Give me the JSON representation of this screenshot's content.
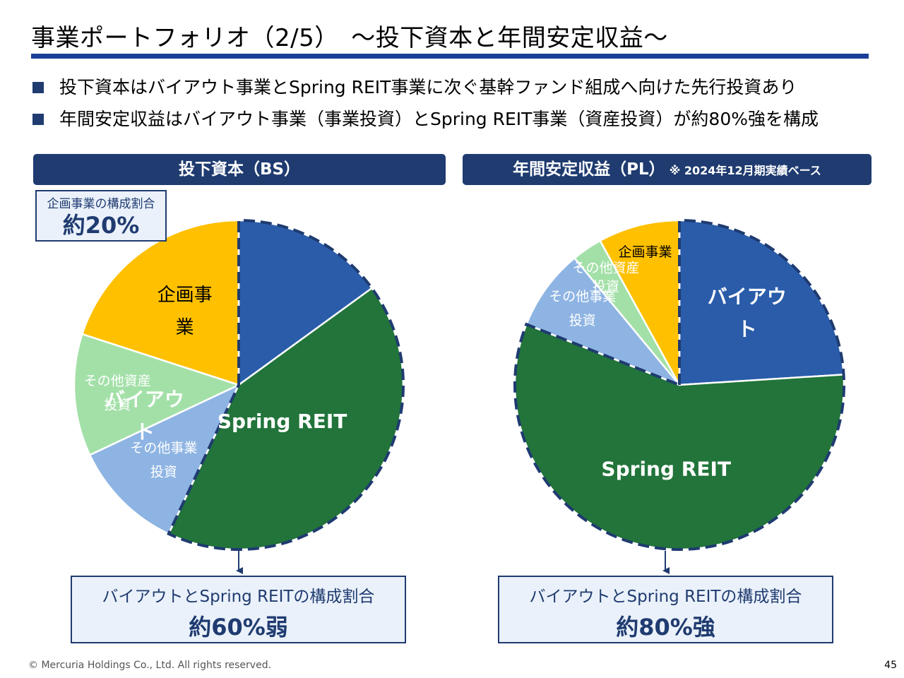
{
  "page": {
    "title": "事業ポートフォリオ（2/5）　～投下資本と年間安定収益～",
    "bullets": [
      "投下資本はバイアウト事業とSpring REIT事業に次ぐ基幹ファンド組成へ向けた先行投資あり",
      "年間安定収益はバイアウト事業（事業投資）とSpring REIT事業（資産投資）が約80%強を構成"
    ],
    "footer": "© Mercuria Holdings Co., Ltd. All rights reserved.",
    "page_number": "45"
  },
  "left_panel": {
    "header": "投下資本（BS）",
    "callout_label": "企画事業の構成割合",
    "callout_value": "約20%",
    "summary_label": "バイアウトとSpring REITの構成割合",
    "summary_value": "約60%弱"
  },
  "right_panel": {
    "header": "年間安定収益（PL）",
    "header_note": "※ 2024年12月期実績ベース",
    "summary_label": "バイアウトとSpring REITの構成割合",
    "summary_value": "約80%強"
  },
  "colors": {
    "buyout": "#2a5caa",
    "spring_reit": "#22743a",
    "other_business": "#8eb4e3",
    "other_asset": "#a3e0a8",
    "planning": "#ffc000",
    "navy": "#1f3b70"
  },
  "chart_data": [
    {
      "type": "pie",
      "title": "投下資本（BS）",
      "slices": [
        {
          "label": "バイアウト",
          "label_lines": [
            "バイアウ",
            "ト"
          ],
          "value": 15,
          "color": "#2a5caa",
          "text_color": "#ffffff",
          "bold": true
        },
        {
          "label": "Spring REIT",
          "label_lines": [
            "Spring REIT"
          ],
          "value": 42,
          "color": "#22743a",
          "text_color": "#ffffff",
          "bold": true
        },
        {
          "label": "その他事業投資",
          "label_lines": [
            "その他事業",
            "投資"
          ],
          "value": 11,
          "color": "#8eb4e3",
          "text_color": "#ffffff",
          "bold": false
        },
        {
          "label": "その他資産投資",
          "label_lines": [
            "その他資産",
            "投資"
          ],
          "value": 12,
          "color": "#a3e0a8",
          "text_color": "#ffffff",
          "bold": false
        },
        {
          "label": "企画事業",
          "label_lines": [
            "企画事",
            "業"
          ],
          "value": 20,
          "color": "#ffc000",
          "text_color": "#000000",
          "bold": false
        }
      ]
    },
    {
      "type": "pie",
      "title": "年間安定収益（PL）",
      "slices": [
        {
          "label": "バイアウト",
          "label_lines": [
            "バイアウ",
            "ト"
          ],
          "value": 24,
          "color": "#2a5caa",
          "text_color": "#ffffff",
          "bold": true
        },
        {
          "label": "Spring REIT",
          "label_lines": [
            "Spring REIT"
          ],
          "value": 57,
          "color": "#22743a",
          "text_color": "#ffffff",
          "bold": true
        },
        {
          "label": "その他事業投資",
          "label_lines": [
            "その他事業",
            "投資"
          ],
          "value": 8,
          "color": "#8eb4e3",
          "text_color": "#ffffff",
          "bold": false
        },
        {
          "label": "その他資産投資",
          "label_lines": [
            "その他資産",
            "投資"
          ],
          "value": 3,
          "color": "#a3e0a8",
          "text_color": "#ffffff",
          "bold": false
        },
        {
          "label": "企画事業",
          "label_lines": [
            "企画事業"
          ],
          "value": 8,
          "color": "#ffc000",
          "text_color": "#000000",
          "bold": false
        }
      ]
    }
  ]
}
